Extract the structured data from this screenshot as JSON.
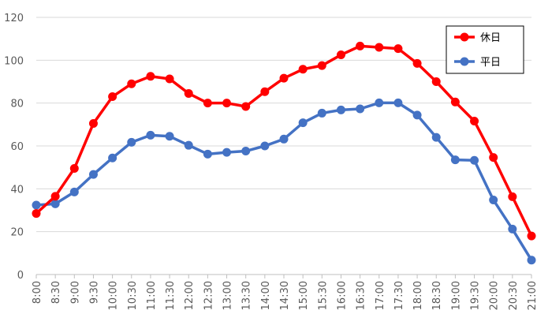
{
  "chart_data": {
    "type": "line",
    "title": "",
    "xlabel": "",
    "ylabel": "",
    "ylim": [
      0,
      120
    ],
    "yticks": [
      0,
      20,
      40,
      60,
      80,
      100,
      120
    ],
    "grid": true,
    "legend_position": "top-right",
    "categories": [
      "8:00",
      "8:30",
      "9:00",
      "9:30",
      "10:00",
      "10:30",
      "11:00",
      "11:30",
      "12:00",
      "12:30",
      "13:00",
      "13:30",
      "14:00",
      "14:30",
      "15:00",
      "15:30",
      "16:00",
      "16:30",
      "17:00",
      "17:30",
      "18:00",
      "18:30",
      "19:00",
      "19:30",
      "20:00",
      "20:30",
      "21:00"
    ],
    "series": [
      {
        "name": "休日",
        "color": "#ff0000",
        "values": [
          28.5,
          36.5,
          49.5,
          70.5,
          83,
          89,
          92.5,
          91.3,
          84.5,
          80,
          80,
          78.4,
          85.3,
          91.6,
          95.8,
          97.5,
          102.5,
          106.6,
          106,
          105.4,
          98.5,
          90,
          80.5,
          71.6,
          54.6,
          36.3,
          18
        ]
      },
      {
        "name": "平日",
        "color": "#4472c4",
        "values": [
          32.4,
          33,
          38.5,
          46.7,
          54.4,
          61.7,
          65,
          64.5,
          60.3,
          56.2,
          57,
          57.6,
          60,
          63.2,
          70.8,
          75.3,
          76.8,
          77.3,
          80.1,
          80.1,
          74.4,
          64,
          53.5,
          53.3,
          34.8,
          21.2,
          6.7
        ]
      }
    ]
  }
}
